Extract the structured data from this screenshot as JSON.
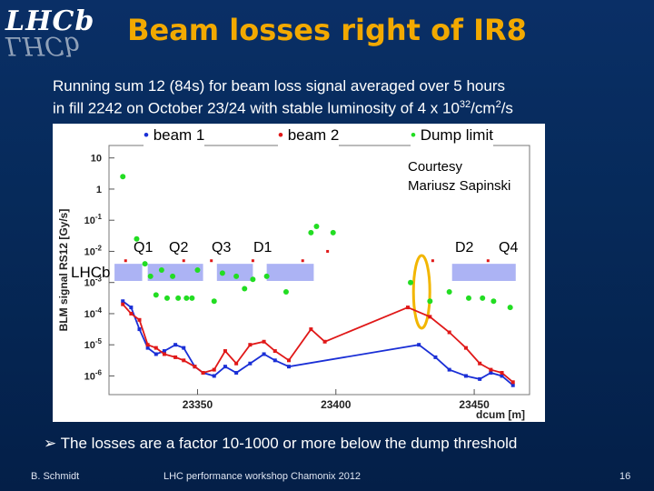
{
  "logo": {
    "text": "LHCb"
  },
  "title": "Beam losses right of IR8",
  "subtitle": {
    "line1": "Running sum 12 (84s) for beam loss signal averaged over 5 hours",
    "line2_pre": "in fill 2242 on October 23/24 with stable luminosity of 4 x 10",
    "line2_exp1": "32",
    "line2_mid": "/cm",
    "line2_exp2": "2",
    "line2_post": "/s"
  },
  "legend": {
    "beam1": "beam 1",
    "beam2": "beam 2",
    "dump": "Dump limit",
    "beam1_color": "#1a2fd6",
    "beam2_color": "#e01818",
    "dump_color": "#22dd22"
  },
  "courtesy": {
    "line1": "Courtesy",
    "line2": "Mariusz Sapinski"
  },
  "magnets": {
    "q1": "Q1",
    "q2": "Q2",
    "q3": "Q3",
    "d1": "D1",
    "d2": "D2",
    "q4": "Q4"
  },
  "lhcb_label": "LHCb",
  "bullet": "➢ The losses are a factor 10-1000 or more below the dump threshold",
  "footer": {
    "author": "B. Schmidt",
    "event": "LHC performance workshop Chamonix 2012",
    "page": "16"
  },
  "chart_data": {
    "type": "scatter",
    "ylabel": "BLM signal RS12 [Gy/s]",
    "xlabel": "dcum [m]",
    "x_ticks": [
      "23350",
      "23400",
      "23450"
    ],
    "y_ticks": [
      "10",
      "1",
      "10-1",
      "10-2",
      "10-3",
      "10-4",
      "10-5",
      "10-6"
    ],
    "y_scale": "log",
    "xlim": [
      23318,
      23470
    ],
    "ylim_log10": [
      -6.6,
      1.4
    ],
    "series": [
      {
        "name": "beam 1",
        "color": "#1a2fd6",
        "x": [
          23323,
          23326,
          23329,
          23332,
          23335,
          23338,
          23342,
          23345,
          23349,
          23352,
          23356,
          23360,
          23364,
          23369,
          23374,
          23378,
          23383,
          23430,
          23436,
          23441,
          23447,
          23452,
          23456,
          23460,
          23464
        ],
        "y": [
          -3.6,
          -3.8,
          -4.5,
          -5.1,
          -5.3,
          -5.2,
          -5.0,
          -5.1,
          -5.7,
          -5.9,
          -6.0,
          -5.7,
          -5.9,
          -5.6,
          -5.3,
          -5.5,
          -5.7,
          -5.0,
          -5.4,
          -5.8,
          -6.0,
          -6.1,
          -5.9,
          -6.0,
          -6.3
        ]
      },
      {
        "name": "beam 2",
        "color": "#e01818",
        "x": [
          23323,
          23326,
          23329,
          23332,
          23335,
          23338,
          23342,
          23345,
          23349,
          23352,
          23356,
          23360,
          23364,
          23369,
          23374,
          23378,
          23383,
          23391,
          23396,
          23426,
          23434,
          23441,
          23447,
          23452,
          23456,
          23460,
          23464
        ],
        "y": [
          -3.7,
          -4.0,
          -4.2,
          -5.0,
          -5.1,
          -5.3,
          -5.4,
          -5.5,
          -5.7,
          -5.9,
          -5.8,
          -5.2,
          -5.6,
          -5.0,
          -4.9,
          -5.2,
          -5.5,
          -4.5,
          -4.9,
          -3.8,
          -4.1,
          -4.6,
          -5.1,
          -5.6,
          -5.8,
          -5.9,
          -6.2
        ]
      },
      {
        "name": "Dump limit",
        "color": "#22dd22",
        "x": [
          23323,
          23328,
          23331,
          23333,
          23335,
          23337,
          23339,
          23341,
          23343,
          23346,
          23348,
          23350,
          23356,
          23359,
          23364,
          23367,
          23370,
          23375,
          23382,
          23391,
          23393,
          23399,
          23427,
          23434,
          23441,
          23448,
          23453,
          23457,
          23463
        ],
        "y": [
          0.4,
          -1.6,
          -2.4,
          -2.8,
          -3.4,
          -2.6,
          -3.5,
          -2.8,
          -3.5,
          -3.5,
          -3.5,
          -2.6,
          -3.6,
          -2.7,
          -2.8,
          -3.2,
          -2.9,
          -2.8,
          -3.3,
          -1.4,
          -1.2,
          -1.4,
          -3.0,
          -3.6,
          -3.3,
          -3.5,
          -3.5,
          -3.6,
          -3.8
        ]
      }
    ],
    "series2_markers": [
      {
        "x": 23324,
        "y": -2.3
      },
      {
        "x": 23345,
        "y": -2.3
      },
      {
        "x": 23355,
        "y": -2.3
      },
      {
        "x": 23370,
        "y": -2.3
      },
      {
        "x": 23388,
        "y": -2.3
      },
      {
        "x": 23397,
        "y": -2.0
      },
      {
        "x": 23435,
        "y": -2.3
      },
      {
        "x": 23455,
        "y": -2.3
      }
    ],
    "magnet_blocks_x": [
      [
        23320,
        23330
      ],
      [
        23332,
        23352
      ],
      [
        23357,
        23370
      ],
      [
        23375,
        23392
      ],
      [
        23442,
        23465
      ]
    ]
  }
}
